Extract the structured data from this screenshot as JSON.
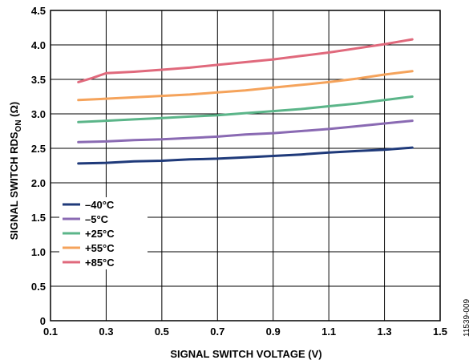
{
  "chart_data": {
    "type": "line",
    "xlabel": "SIGNAL SWITCH VOLTAGE (V)",
    "ylabel_main": "SIGNAL SWITCH RDS",
    "ylabel_sub": "ON",
    "ylabel_unit": " (Ω)",
    "xlim": [
      0.1,
      1.5
    ],
    "ylim": [
      0,
      4.5
    ],
    "x_ticks": [
      "0.1",
      "0.3",
      "0.5",
      "0.7",
      "0.9",
      "1.1",
      "1.3",
      "1.5"
    ],
    "y_ticks": [
      "0",
      "0.5",
      "1.0",
      "1.5",
      "2.0",
      "2.5",
      "3.0",
      "3.5",
      "4.0",
      "4.5"
    ],
    "grid": true,
    "legend_position": "lower-left",
    "series": [
      {
        "name": "–40°C",
        "color": "#1f3a7a",
        "x": [
          0.2,
          0.3,
          0.4,
          0.5,
          0.6,
          0.7,
          0.8,
          0.9,
          1.0,
          1.1,
          1.2,
          1.3,
          1.4
        ],
        "y": [
          2.28,
          2.29,
          2.31,
          2.32,
          2.34,
          2.35,
          2.37,
          2.39,
          2.41,
          2.44,
          2.46,
          2.48,
          2.51
        ]
      },
      {
        "name": "–5°C",
        "color": "#8a6ab3",
        "x": [
          0.2,
          0.3,
          0.4,
          0.5,
          0.6,
          0.7,
          0.8,
          0.9,
          1.0,
          1.1,
          1.2,
          1.3,
          1.4
        ],
        "y": [
          2.59,
          2.6,
          2.62,
          2.63,
          2.65,
          2.67,
          2.7,
          2.72,
          2.75,
          2.78,
          2.82,
          2.86,
          2.9
        ]
      },
      {
        "name": "+25°C",
        "color": "#5bb589",
        "x": [
          0.2,
          0.3,
          0.4,
          0.5,
          0.6,
          0.7,
          0.8,
          0.9,
          1.0,
          1.1,
          1.2,
          1.3,
          1.4
        ],
        "y": [
          2.88,
          2.9,
          2.92,
          2.94,
          2.96,
          2.98,
          3.01,
          3.04,
          3.07,
          3.11,
          3.15,
          3.2,
          3.25
        ]
      },
      {
        "name": "+55°C",
        "color": "#f5a35b",
        "x": [
          0.2,
          0.3,
          0.4,
          0.5,
          0.6,
          0.7,
          0.8,
          0.9,
          1.0,
          1.1,
          1.2,
          1.3,
          1.4
        ],
        "y": [
          3.2,
          3.22,
          3.24,
          3.26,
          3.28,
          3.31,
          3.34,
          3.38,
          3.42,
          3.46,
          3.51,
          3.57,
          3.62
        ]
      },
      {
        "name": "+85°C",
        "color": "#e0697c",
        "x": [
          0.2,
          0.25,
          0.3,
          0.4,
          0.5,
          0.6,
          0.7,
          0.8,
          0.9,
          1.0,
          1.1,
          1.2,
          1.3,
          1.4
        ],
        "y": [
          3.46,
          3.52,
          3.59,
          3.61,
          3.64,
          3.67,
          3.71,
          3.75,
          3.79,
          3.84,
          3.89,
          3.95,
          4.01,
          4.08
        ]
      }
    ]
  },
  "figure_id": "11539-009"
}
